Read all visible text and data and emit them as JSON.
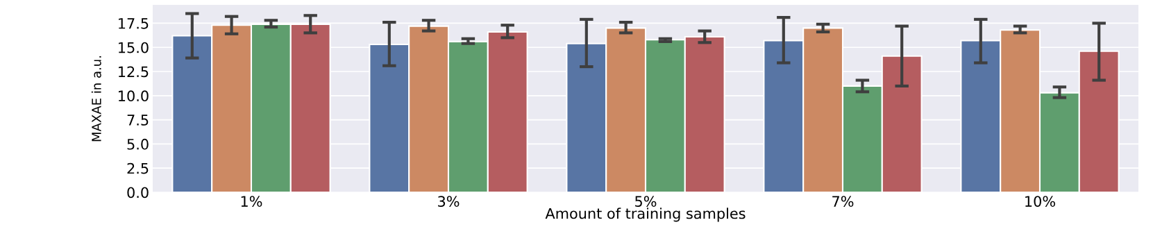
{
  "chart_data": {
    "type": "bar",
    "xlabel": "Amount of training samples",
    "ylabel": "MAXAE in a.u.",
    "categories": [
      "1%",
      "3%",
      "5%",
      "7%",
      "10%"
    ],
    "series": [
      {
        "color": "#5875a4",
        "values": [
          16.2,
          15.3,
          15.4,
          15.7,
          15.7
        ],
        "errors": [
          [
            13.9,
            18.5
          ],
          [
            13.1,
            17.6
          ],
          [
            13.0,
            17.9
          ],
          [
            13.4,
            18.1
          ],
          [
            13.4,
            17.9
          ]
        ]
      },
      {
        "color": "#cc8963",
        "values": [
          17.3,
          17.2,
          17.0,
          17.0,
          16.8
        ],
        "errors": [
          [
            16.4,
            18.2
          ],
          [
            16.7,
            17.8
          ],
          [
            16.5,
            17.6
          ],
          [
            16.6,
            17.4
          ],
          [
            16.5,
            17.2
          ]
        ]
      },
      {
        "color": "#5f9e6e",
        "values": [
          17.4,
          15.6,
          15.8,
          11.0,
          10.3
        ],
        "errors": [
          [
            17.1,
            17.8
          ],
          [
            15.4,
            15.9
          ],
          [
            15.6,
            15.9
          ],
          [
            10.4,
            11.6
          ],
          [
            9.8,
            10.9
          ]
        ]
      },
      {
        "color": "#b55d60",
        "values": [
          17.4,
          16.6,
          16.1,
          14.1,
          14.6
        ],
        "errors": [
          [
            16.5,
            18.3
          ],
          [
            16.0,
            17.3
          ],
          [
            15.5,
            16.7
          ],
          [
            11.0,
            17.2
          ],
          [
            11.6,
            17.5
          ]
        ]
      }
    ],
    "ylim": [
      0,
      19.4
    ],
    "yticks": [
      {
        "value": 0,
        "label": "0.0"
      },
      {
        "value": 2.5,
        "label": "2.5"
      },
      {
        "value": 5,
        "label": "5.0"
      },
      {
        "value": 7.5,
        "label": "7.5"
      },
      {
        "value": 10,
        "label": "10.0"
      },
      {
        "value": 12.5,
        "label": "12.5"
      },
      {
        "value": 15,
        "label": "15.0"
      },
      {
        "value": 17.5,
        "label": "17.5"
      }
    ],
    "grid": "y"
  }
}
